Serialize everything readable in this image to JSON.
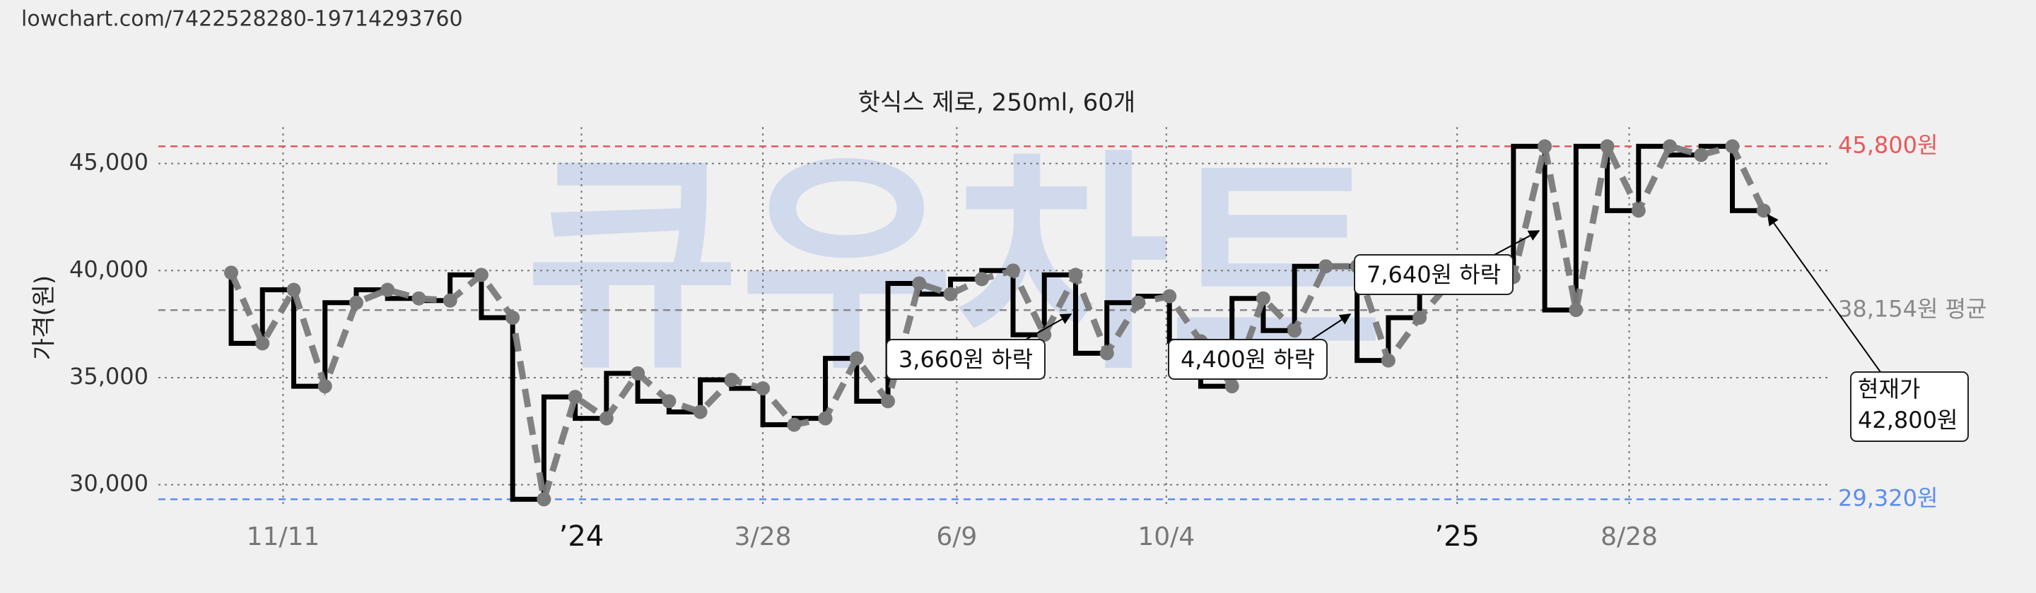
{
  "url": "lowchart.com/7422528280-19714293760",
  "chart_data": {
    "type": "line",
    "title": "핫식스 제로, 250ml, 60개",
    "y_label": "가격(원)",
    "watermark": "큐우차트",
    "categories": [
      null,
      null,
      null,
      null,
      null,
      null,
      null,
      null,
      null,
      null,
      null,
      null,
      null,
      null,
      null,
      null,
      null,
      null,
      null,
      null,
      null,
      null,
      null,
      null,
      null,
      null,
      null,
      null,
      null,
      null,
      null,
      null,
      null,
      null,
      null,
      null,
      null,
      null,
      null,
      null,
      null,
      null,
      null,
      null,
      null,
      null,
      null,
      null,
      null,
      null
    ],
    "values": [
      39900,
      36600,
      39100,
      34600,
      38500,
      39100,
      38700,
      38600,
      39800,
      37800,
      29320,
      34100,
      33100,
      35200,
      33900,
      33400,
      34900,
      34500,
      32800,
      33100,
      35900,
      33900,
      39400,
      38900,
      39600,
      40000,
      37000,
      39800,
      36140,
      38500,
      38800,
      36700,
      34600,
      38700,
      37200,
      40200,
      40200,
      35800,
      37800,
      39500,
      39600,
      39700,
      45800,
      38160,
      45800,
      42800,
      45800,
      45400,
      45800,
      42800
    ],
    "color": "#7a7a7a",
    "step_color": "#000000",
    "ylim": [
      28900,
      46700
    ],
    "yticks": [
      {
        "value": 30000,
        "label": "30,000"
      },
      {
        "value": 35000,
        "label": "35,000"
      },
      {
        "value": 40000,
        "label": "40,000"
      },
      {
        "value": 45000,
        "label": "45,000"
      }
    ],
    "xticks": [
      {
        "value": 1.66,
        "label": "11/11"
      },
      {
        "value": 11.2,
        "label": "’24"
      },
      {
        "value": 17.0,
        "label": "3/28"
      },
      {
        "value": 23.2,
        "label": "6/9"
      },
      {
        "value": 29.9,
        "label": "10/4"
      },
      {
        "value": 39.2,
        "label": "’25"
      },
      {
        "value": 44.7,
        "label": "8/28"
      }
    ],
    "grid": true,
    "reference_lines": [
      {
        "value": 45800,
        "label": "45,800원",
        "color": "#e8585a"
      },
      {
        "value": 38154,
        "label": "38,154원 평균",
        "color": "#888888"
      },
      {
        "value": 29320,
        "label": "29,320원",
        "color": "#5b8def"
      }
    ],
    "annotations": [
      {
        "text": "3,660원 하락",
        "value": 3660
      },
      {
        "text": "4,400원 하락",
        "value": 4400
      },
      {
        "text": "7,640원 하락",
        "value": 7640
      }
    ],
    "current": {
      "lines": [
        "현재가",
        "42,800원"
      ],
      "value": 42800
    }
  }
}
